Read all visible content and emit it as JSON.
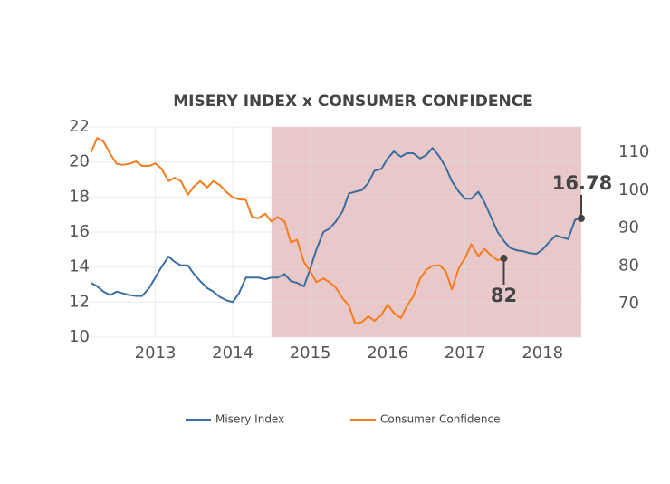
{
  "chart_data": {
    "type": "line",
    "title": "MISERY INDEX x CONSUMER CONFIDENCE",
    "x": [
      2012.17,
      2012.25,
      2012.33,
      2012.42,
      2012.5,
      2012.58,
      2012.67,
      2012.75,
      2012.83,
      2012.92,
      2013.0,
      2013.08,
      2013.17,
      2013.25,
      2013.33,
      2013.42,
      2013.5,
      2013.58,
      2013.67,
      2013.75,
      2013.83,
      2013.92,
      2014.0,
      2014.08,
      2014.17,
      2014.25,
      2014.33,
      2014.42,
      2014.5,
      2014.58,
      2014.67,
      2014.75,
      2014.83,
      2014.92,
      2015.0,
      2015.08,
      2015.17,
      2015.25,
      2015.33,
      2015.42,
      2015.5,
      2015.58,
      2015.67,
      2015.75,
      2015.83,
      2015.92,
      2016.0,
      2016.08,
      2016.17,
      2016.25,
      2016.33,
      2016.42,
      2016.5,
      2016.58,
      2016.67,
      2016.75,
      2016.83,
      2016.92,
      2017.0,
      2017.08,
      2017.17,
      2017.25,
      2017.33,
      2017.42,
      2017.5,
      2017.58,
      2017.67,
      2017.75,
      2017.83,
      2017.92,
      2018.0,
      2018.08,
      2018.17,
      2018.25,
      2018.33,
      2018.42,
      2018.5
    ],
    "series": [
      {
        "name": "Misery Index",
        "color": "#3b6ea0",
        "axis": "y",
        "values": [
          13.1,
          12.9,
          12.6,
          12.4,
          12.6,
          12.5,
          12.4,
          12.35,
          12.35,
          12.8,
          13.4,
          14.0,
          14.6,
          14.3,
          14.1,
          14.1,
          13.6,
          13.2,
          12.8,
          12.6,
          12.3,
          12.1,
          12.0,
          12.5,
          13.4,
          13.4,
          13.4,
          13.3,
          13.4,
          13.4,
          13.6,
          13.2,
          13.1,
          12.9,
          13.9,
          15.0,
          16.0,
          16.2,
          16.6,
          17.2,
          18.2,
          18.3,
          18.4,
          18.8,
          19.5,
          19.6,
          20.2,
          20.6,
          20.3,
          20.5,
          20.5,
          20.2,
          20.4,
          20.8,
          20.3,
          19.7,
          18.9,
          18.3,
          17.9,
          17.9,
          18.3,
          17.7,
          16.9,
          16.0,
          15.5,
          15.1,
          14.95,
          14.9,
          14.8,
          14.75,
          15.0,
          15.4,
          15.8,
          15.7,
          15.6,
          16.7,
          16.78
        ]
      },
      {
        "name": "Consumer Confidence",
        "color": "#f57b1c",
        "axis": "y2",
        "values": [
          110,
          113.8,
          112.9,
          109.5,
          107,
          106.7,
          107,
          107.6,
          106.4,
          106.4,
          107.1,
          105.7,
          102.4,
          103.3,
          102.4,
          98.8,
          101,
          102.4,
          100.7,
          102.4,
          101.4,
          99.5,
          98.1,
          97.6,
          97.4,
          92.9,
          92.6,
          93.8,
          91.7,
          92.9,
          91.7,
          86.2,
          86.9,
          81,
          78.6,
          75.7,
          76.7,
          75.7,
          74.3,
          71.4,
          69.5,
          64.8,
          65.2,
          66.7,
          65.5,
          67.1,
          69.8,
          67.6,
          66.2,
          69.5,
          71.9,
          76.7,
          79,
          80,
          80.2,
          78.6,
          73.8,
          79.5,
          82.1,
          85.7,
          82.6,
          84.5,
          82.9,
          81.5,
          82,
          null,
          null,
          null,
          null,
          null,
          null,
          null,
          null,
          null,
          null,
          null,
          null
        ]
      }
    ],
    "xlim": [
      2012.0,
      2018.5
    ],
    "xticks": [
      2013,
      2014,
      2015,
      2016,
      2017,
      2018
    ],
    "ylim": [
      10,
      22
    ],
    "yticks": [
      10,
      12,
      14,
      16,
      18,
      20,
      22
    ],
    "y2lim": [
      61.2,
      116.7
    ],
    "y2ticks": [
      70,
      80,
      90,
      100,
      110
    ],
    "grid": true,
    "shaded_range": {
      "x0": 2014.5,
      "x1": 2018.5,
      "color": "#e8c8c9"
    },
    "highlights": [
      {
        "series": 0,
        "index": 76
      },
      {
        "series": 1,
        "index": 64
      }
    ],
    "legend": "bottom"
  }
}
